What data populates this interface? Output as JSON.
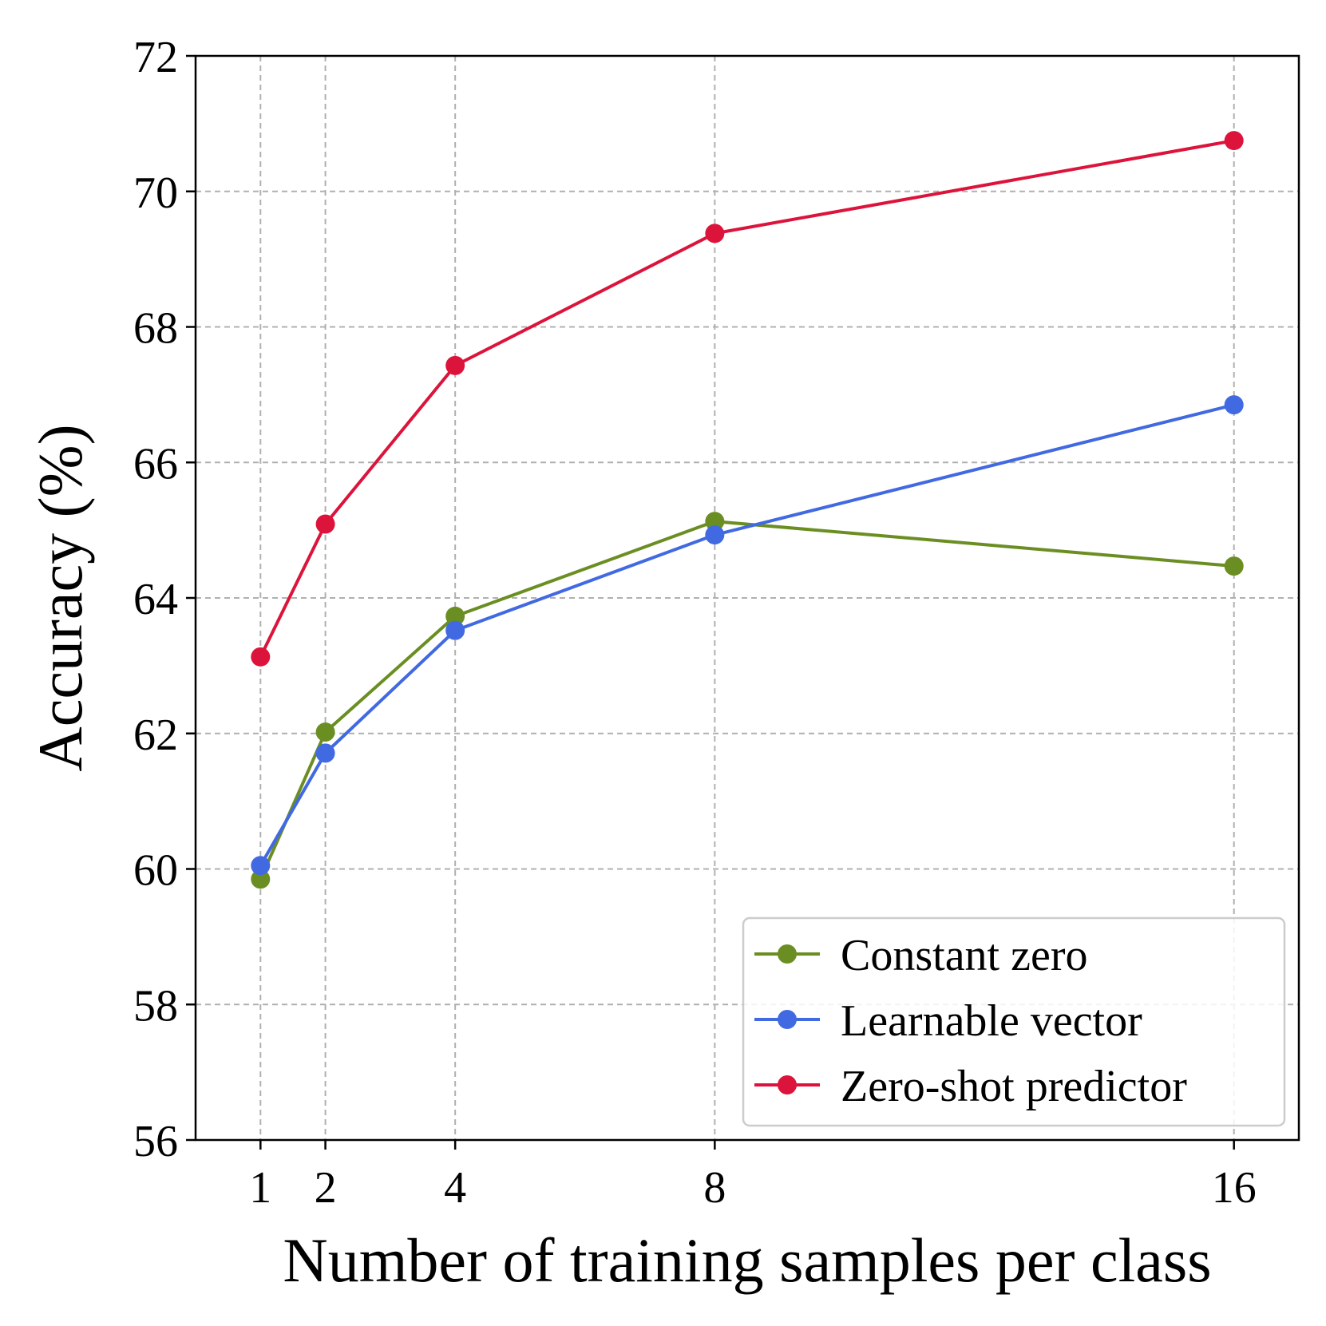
{
  "chart_data": {
    "type": "line",
    "title": "",
    "xlabel": "Number of training samples per class",
    "ylabel": "Accuracy (%)",
    "x": [
      1,
      2,
      4,
      8,
      16
    ],
    "x_tick_labels": [
      "1",
      "2",
      "4",
      "8",
      "16"
    ],
    "y_ticks": [
      56,
      58,
      60,
      62,
      64,
      66,
      68,
      70,
      72
    ],
    "y_tick_labels": [
      "56",
      "58",
      "60",
      "62",
      "64",
      "66",
      "68",
      "70",
      "72"
    ],
    "xlim": [
      0,
      17
    ],
    "ylim": [
      56,
      72
    ],
    "grid": true,
    "legend_position": "lower-right",
    "series": [
      {
        "name": "Constant zero",
        "color": "#6b8e23",
        "values": [
          59.85,
          62.02,
          63.73,
          65.13,
          64.47
        ]
      },
      {
        "name": "Learnable vector",
        "color": "#4169e1",
        "values": [
          60.05,
          61.71,
          63.52,
          64.93,
          66.85
        ]
      },
      {
        "name": "Zero-shot predictor",
        "color": "#dc143c",
        "values": [
          63.13,
          65.09,
          67.43,
          69.38,
          70.75
        ]
      }
    ]
  }
}
